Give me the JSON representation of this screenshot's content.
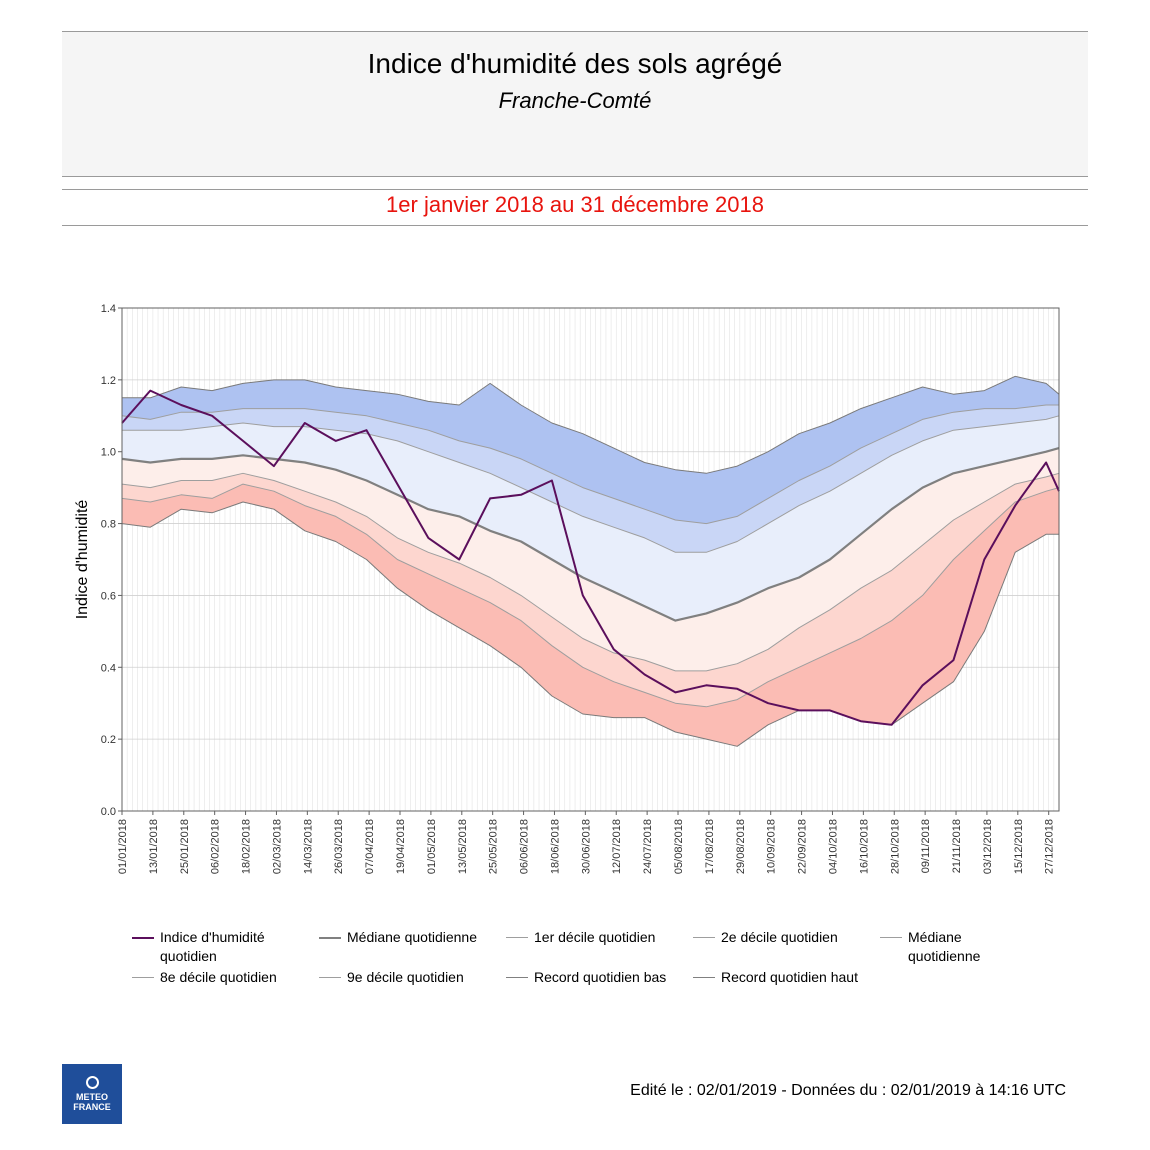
{
  "header": {
    "title": "Indice d'humidité des sols agrégé",
    "subtitle": "Franche-Comté",
    "period": "1er janvier 2018 au 31 décembre 2018"
  },
  "footer": {
    "text": "Edité le : 02/01/2019 - Données du : 02/01/2019 à 14:16 UTC"
  },
  "logo": {
    "line1": "METEO",
    "line2": "FRANCE"
  },
  "chart_data": {
    "type": "area",
    "title": "Indice d'humidité des sols agrégé",
    "xlabel": "",
    "ylabel": "Indice d'humidité",
    "ylim": [
      0,
      1.4
    ],
    "y_ticks": [
      "0.0",
      "0.2",
      "0.4",
      "0.6",
      "0.8",
      "1.0",
      "1.2",
      "1.4"
    ],
    "x_ticks": [
      "01/01/2018",
      "13/01/2018",
      "25/01/2018",
      "06/02/2018",
      "18/02/2018",
      "02/03/2018",
      "14/03/2018",
      "26/03/2018",
      "07/04/2018",
      "19/04/2018",
      "01/05/2018",
      "13/05/2018",
      "25/05/2018",
      "06/06/2018",
      "18/06/2018",
      "30/06/2018",
      "12/07/2018",
      "24/07/2018",
      "05/08/2018",
      "17/08/2018",
      "29/08/2018",
      "10/09/2018",
      "22/09/2018",
      "04/10/2018",
      "16/10/2018",
      "28/10/2018",
      "09/11/2018",
      "21/11/2018",
      "03/12/2018",
      "15/12/2018",
      "27/12/2018"
    ],
    "x": [
      1,
      12,
      24,
      36,
      48,
      60,
      72,
      84,
      96,
      108,
      120,
      132,
      144,
      156,
      168,
      180,
      192,
      204,
      216,
      228,
      240,
      252,
      264,
      276,
      288,
      300,
      312,
      324,
      336,
      348,
      360,
      365
    ],
    "series": [
      {
        "name": "Record quotidien bas",
        "values": [
          0.8,
          0.79,
          0.84,
          0.83,
          0.86,
          0.84,
          0.78,
          0.75,
          0.7,
          0.62,
          0.56,
          0.51,
          0.46,
          0.4,
          0.32,
          0.27,
          0.26,
          0.26,
          0.22,
          0.2,
          0.18,
          0.24,
          0.28,
          0.28,
          0.25,
          0.24,
          0.3,
          0.36,
          0.5,
          0.72,
          0.77,
          0.77
        ]
      },
      {
        "name": "1er décile quotidien",
        "values": [
          0.87,
          0.86,
          0.88,
          0.87,
          0.91,
          0.89,
          0.85,
          0.82,
          0.77,
          0.7,
          0.66,
          0.62,
          0.58,
          0.53,
          0.46,
          0.4,
          0.36,
          0.33,
          0.3,
          0.29,
          0.31,
          0.36,
          0.4,
          0.44,
          0.48,
          0.53,
          0.6,
          0.7,
          0.78,
          0.86,
          0.89,
          0.9
        ]
      },
      {
        "name": "2e décile quotidien",
        "values": [
          0.91,
          0.9,
          0.92,
          0.92,
          0.94,
          0.92,
          0.89,
          0.86,
          0.82,
          0.76,
          0.72,
          0.69,
          0.65,
          0.6,
          0.54,
          0.48,
          0.44,
          0.42,
          0.39,
          0.39,
          0.41,
          0.45,
          0.51,
          0.56,
          0.62,
          0.67,
          0.74,
          0.81,
          0.86,
          0.91,
          0.93,
          0.94
        ]
      },
      {
        "name": "Médiane quotidienne",
        "values": [
          0.98,
          0.97,
          0.98,
          0.98,
          0.99,
          0.98,
          0.97,
          0.95,
          0.92,
          0.88,
          0.84,
          0.82,
          0.78,
          0.75,
          0.7,
          0.65,
          0.61,
          0.57,
          0.53,
          0.55,
          0.58,
          0.62,
          0.65,
          0.7,
          0.77,
          0.84,
          0.9,
          0.94,
          0.96,
          0.98,
          1.0,
          1.01
        ]
      },
      {
        "name": "8e décile quotidien",
        "values": [
          1.06,
          1.06,
          1.06,
          1.07,
          1.08,
          1.07,
          1.07,
          1.06,
          1.05,
          1.03,
          1.0,
          0.97,
          0.94,
          0.9,
          0.86,
          0.82,
          0.79,
          0.76,
          0.72,
          0.72,
          0.75,
          0.8,
          0.85,
          0.89,
          0.94,
          0.99,
          1.03,
          1.06,
          1.07,
          1.08,
          1.09,
          1.1
        ]
      },
      {
        "name": "9e décile quotidien",
        "values": [
          1.1,
          1.09,
          1.11,
          1.11,
          1.12,
          1.12,
          1.12,
          1.11,
          1.1,
          1.08,
          1.06,
          1.03,
          1.01,
          0.98,
          0.94,
          0.9,
          0.87,
          0.84,
          0.81,
          0.8,
          0.82,
          0.87,
          0.92,
          0.96,
          1.01,
          1.05,
          1.09,
          1.11,
          1.12,
          1.12,
          1.13,
          1.13
        ]
      },
      {
        "name": "Record quotidien haut",
        "values": [
          1.15,
          1.15,
          1.18,
          1.17,
          1.19,
          1.2,
          1.2,
          1.18,
          1.17,
          1.16,
          1.14,
          1.13,
          1.19,
          1.13,
          1.08,
          1.05,
          1.01,
          0.97,
          0.95,
          0.94,
          0.96,
          1.0,
          1.05,
          1.08,
          1.12,
          1.15,
          1.18,
          1.16,
          1.17,
          1.21,
          1.19,
          1.16
        ]
      },
      {
        "name": "Indice d'humidité quotidien",
        "values": [
          1.08,
          1.17,
          1.13,
          1.1,
          1.03,
          0.96,
          1.08,
          1.03,
          1.06,
          0.91,
          0.76,
          0.7,
          0.87,
          0.88,
          0.92,
          0.6,
          0.45,
          0.38,
          0.33,
          0.35,
          0.34,
          0.3,
          0.28,
          0.28,
          0.25,
          0.24,
          0.35,
          0.42,
          0.7,
          0.85,
          0.97,
          0.89
        ]
      }
    ],
    "legend": [
      "Indice d'humidité quotidien",
      "Médiane quotidienne",
      "1er décile quotidien",
      "2e décile quotidien",
      "Médiane quotidienne",
      "8e décile quotidien",
      "9e décile quotidien",
      "Record quotidien bas",
      "Record quotidien haut"
    ],
    "colors": {
      "index": "#5b0f5c",
      "median": "#808080",
      "decile": "#9e9e9e",
      "band_record_low": "#fbbcb4",
      "band_d1_d2": "#fdd6cf",
      "band_d2_med": "#fdeeea",
      "band_med_d8": "#e8eefb",
      "band_d8_d9": "#c9d6f6",
      "band_d9_record_high": "#aec2f1"
    }
  }
}
